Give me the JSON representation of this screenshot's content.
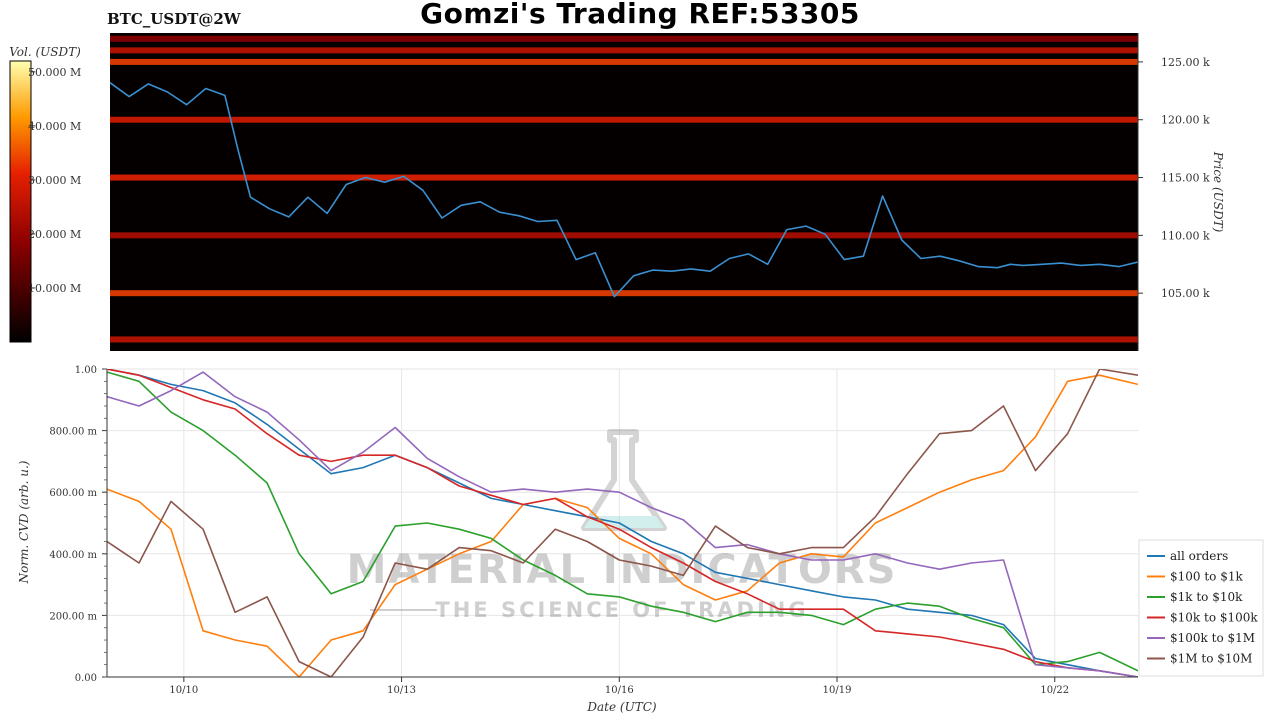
{
  "title": "Gomzi's Trading REF:53305",
  "symbol": "BTC_USDT@2W",
  "colors": {
    "all orders": "#1f77b4",
    "$100 to $1k": "#ff7f0e",
    "$1k to $10k": "#2ca02c",
    "$10k to $100k": "#d62728",
    "$100k to $1M": "#9467bd",
    "$1M to $10M": "#8c564b",
    "heatmap_bg": "#050000",
    "price_line": "#3a8fd0"
  },
  "watermark": {
    "line1": "MATERIAL INDICATORS",
    "line2": "THE SCIENCE OF TRADING"
  },
  "chart_data": [
    {
      "type": "heatmap",
      "xlabel": "",
      "ylabel": "Price (USDT)",
      "ylim": [
        100000,
        127500
      ],
      "ytick_labels": [
        "105.00 k",
        "110.00 k",
        "115.00 k",
        "120.00 k",
        "125.00 k"
      ],
      "ytick_values": [
        105000,
        110000,
        115000,
        120000,
        125000
      ],
      "colorbar": {
        "label": "Vol. (USDT)",
        "range": [
          0,
          52000000
        ],
        "tick_labels": [
          "10.000 M",
          "20.000 M",
          "30.000 M",
          "40.000 M",
          "50.000 M"
        ],
        "tick_values": [
          10000000,
          20000000,
          30000000,
          40000000,
          50000000
        ]
      },
      "price_series": {
        "x": [
          0,
          0.3,
          0.6,
          0.9,
          1.2,
          1.5,
          1.8,
          2.0,
          2.2,
          2.5,
          2.8,
          3.1,
          3.4,
          3.7,
          4.0,
          4.3,
          4.6,
          4.9,
          5.2,
          5.5,
          5.8,
          6.1,
          6.4,
          6.7,
          7.0,
          7.3,
          7.6,
          7.9,
          8.2,
          8.5,
          8.8,
          9.1,
          9.4,
          9.7,
          10.0,
          10.3,
          10.6,
          10.9,
          11.2,
          11.5,
          11.8,
          12.1,
          12.4,
          12.7,
          13.0,
          13.3,
          13.6,
          13.9,
          14.1,
          14.3,
          14.6,
          14.9,
          15.2,
          15.5,
          15.8,
          16.1
        ],
        "y": [
          123200,
          122000,
          123100,
          122400,
          121300,
          122700,
          122100,
          117500,
          113300,
          112300,
          111600,
          113300,
          111900,
          114400,
          115000,
          114600,
          115100,
          113900,
          111500,
          112600,
          112900,
          112000,
          111700,
          111200,
          111300,
          107900,
          108500,
          104700,
          106500,
          107000,
          106900,
          107100,
          106900,
          108000,
          108400,
          107500,
          110500,
          110800,
          110100,
          107900,
          108200,
          113400,
          109600,
          108000,
          108200,
          107800,
          107300,
          107200,
          107500,
          107400,
          107500,
          107600,
          107400,
          107500,
          107300,
          107700
        ]
      },
      "liquidity_bands": [
        {
          "price": 127000,
          "intensity": 0.35
        },
        {
          "price": 126000,
          "intensity": 0.5
        },
        {
          "price": 125000,
          "intensity": 0.65
        },
        {
          "price": 120000,
          "intensity": 0.55
        },
        {
          "price": 115000,
          "intensity": 0.6
        },
        {
          "price": 110000,
          "intensity": 0.45
        },
        {
          "price": 105000,
          "intensity": 0.65
        },
        {
          "price": 101000,
          "intensity": 0.5
        }
      ]
    },
    {
      "type": "line",
      "xlabel": "Date (UTC)",
      "ylabel": "Norm. CVD (arb. u.)",
      "ylim": [
        0,
        1
      ],
      "xlim": [
        0,
        16.1
      ],
      "grid": true,
      "legend": "right",
      "x_tick_labels": [
        "10/10",
        "10/13",
        "10/16",
        "10/19",
        "10/22"
      ],
      "x_tick_values": [
        1.2,
        4.6,
        8.0,
        11.4,
        14.8
      ],
      "y_tick_labels": [
        "0.00",
        "200.00 m",
        "400.00 m",
        "600.00 m",
        "800.00 m",
        "1.00"
      ],
      "y_tick_values": [
        0,
        0.2,
        0.4,
        0.6,
        0.8,
        1.0
      ],
      "x": [
        0,
        0.5,
        1.0,
        1.5,
        2.0,
        2.5,
        3.0,
        3.5,
        4.0,
        4.5,
        5.0,
        5.5,
        6.0,
        6.5,
        7.0,
        7.5,
        8.0,
        8.5,
        9.0,
        9.5,
        10.0,
        10.5,
        11.0,
        11.5,
        12.0,
        12.5,
        13.0,
        13.5,
        14.0,
        14.5,
        15.0,
        15.5,
        16.1
      ],
      "series": [
        {
          "name": "all orders",
          "values": [
            1.0,
            0.98,
            0.95,
            0.93,
            0.89,
            0.82,
            0.74,
            0.66,
            0.68,
            0.72,
            0.68,
            0.63,
            0.58,
            0.56,
            0.54,
            0.52,
            0.5,
            0.44,
            0.4,
            0.34,
            0.32,
            0.3,
            0.28,
            0.26,
            0.25,
            0.22,
            0.21,
            0.2,
            0.17,
            0.06,
            0.04,
            0.02,
            0.0
          ]
        },
        {
          "name": "$100 to $1k",
          "values": [
            0.61,
            0.57,
            0.48,
            0.15,
            0.12,
            0.1,
            0.0,
            0.12,
            0.15,
            0.3,
            0.35,
            0.4,
            0.44,
            0.56,
            0.58,
            0.55,
            0.45,
            0.4,
            0.3,
            0.25,
            0.28,
            0.37,
            0.4,
            0.39,
            0.5,
            0.55,
            0.6,
            0.64,
            0.67,
            0.78,
            0.96,
            0.98,
            0.95
          ]
        },
        {
          "name": "$1k to $10k",
          "values": [
            0.99,
            0.96,
            0.86,
            0.8,
            0.72,
            0.63,
            0.4,
            0.27,
            0.31,
            0.49,
            0.5,
            0.48,
            0.45,
            0.38,
            0.33,
            0.27,
            0.26,
            0.23,
            0.21,
            0.18,
            0.21,
            0.21,
            0.2,
            0.17,
            0.22,
            0.24,
            0.23,
            0.19,
            0.16,
            0.04,
            0.05,
            0.08,
            0.02
          ]
        },
        {
          "name": "$10k to $100k",
          "values": [
            1.0,
            0.98,
            0.94,
            0.9,
            0.87,
            0.79,
            0.72,
            0.7,
            0.72,
            0.72,
            0.68,
            0.62,
            0.59,
            0.56,
            0.58,
            0.52,
            0.48,
            0.42,
            0.37,
            0.31,
            0.27,
            0.22,
            0.22,
            0.22,
            0.15,
            0.14,
            0.13,
            0.11,
            0.09,
            0.05,
            0.03,
            0.02,
            0.0
          ]
        },
        {
          "name": "$100k to $1M",
          "values": [
            0.91,
            0.88,
            0.93,
            0.99,
            0.91,
            0.86,
            0.77,
            0.67,
            0.73,
            0.81,
            0.71,
            0.65,
            0.6,
            0.61,
            0.6,
            0.61,
            0.6,
            0.55,
            0.51,
            0.42,
            0.43,
            0.4,
            0.38,
            0.38,
            0.4,
            0.37,
            0.35,
            0.37,
            0.38,
            0.04,
            0.03,
            0.02,
            0.0
          ]
        },
        {
          "name": "$1M to $10M",
          "values": [
            0.44,
            0.37,
            0.57,
            0.48,
            0.21,
            0.26,
            0.05,
            0.0,
            0.13,
            0.37,
            0.35,
            0.42,
            0.41,
            0.37,
            0.48,
            0.44,
            0.38,
            0.36,
            0.33,
            0.49,
            0.42,
            0.4,
            0.42,
            0.42,
            0.52,
            0.66,
            0.79,
            0.8,
            0.88,
            0.67,
            0.79,
            1.0,
            0.98
          ]
        }
      ]
    }
  ]
}
